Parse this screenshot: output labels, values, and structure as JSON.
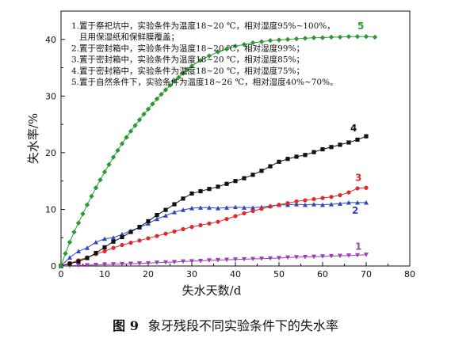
{
  "chart_data": {
    "type": "line",
    "xlabel": "失水天数/d",
    "ylabel": "失水率/%",
    "xlim": [
      0,
      80
    ],
    "ylim": [
      0,
      45
    ],
    "xticks": [
      0,
      10,
      20,
      30,
      40,
      50,
      60,
      70,
      80
    ],
    "yticks": [
      0,
      10,
      20,
      30,
      40
    ],
    "grid": false,
    "notes": [
      "1.置于祭祀坑中，实验条件为温度18~20 ℃，相对湿度95%~100%，",
      "且用保湿纸和保鲜膜覆盖；",
      "2.置于密封箱中，实验条件为温度18~20 ℃，相对湿度99%；",
      "3.置于密封箱中，实验条件为温度18~20 ℃，相对湿度85%；",
      "4.置于密封箱中，实验条件为温度18~20 ℃，相对湿度75%；",
      "5.置于自然条件下，实验条件为温度18~26 ℃，相对湿度40%~70%。"
    ],
    "series": [
      {
        "name": "1",
        "color": "#9b3fb5",
        "marker": "triangle-down",
        "x": [
          0,
          2,
          4,
          6,
          8,
          10,
          12,
          14,
          16,
          18,
          20,
          22,
          24,
          26,
          28,
          30,
          32,
          34,
          36,
          38,
          40,
          42,
          44,
          46,
          48,
          50,
          52,
          54,
          56,
          58,
          60,
          62,
          64,
          66,
          68,
          70
        ],
        "y": [
          0,
          0.05,
          0.1,
          0.15,
          0.2,
          0.25,
          0.3,
          0.35,
          0.4,
          0.45,
          0.5,
          0.6,
          0.65,
          0.7,
          0.8,
          0.85,
          0.9,
          1.0,
          1.05,
          1.1,
          1.15,
          1.2,
          1.25,
          1.3,
          1.35,
          1.4,
          1.5,
          1.55,
          1.6,
          1.65,
          1.7,
          1.75,
          1.8,
          1.85,
          1.9,
          2.0
        ]
      },
      {
        "name": "2",
        "color": "#2e46c0",
        "marker": "triangle-up",
        "x": [
          0,
          2,
          4,
          6,
          8,
          10,
          12,
          14,
          16,
          18,
          20,
          22,
          24,
          26,
          28,
          30,
          32,
          34,
          36,
          38,
          40,
          42,
          44,
          46,
          48,
          50,
          52,
          54,
          56,
          58,
          60,
          62,
          64,
          66,
          68,
          70
        ],
        "y": [
          0,
          1.5,
          2.6,
          3.2,
          4.2,
          4.8,
          5.0,
          5.6,
          6.2,
          6.8,
          7.5,
          8.3,
          8.9,
          9.5,
          9.9,
          10.2,
          10.3,
          10.3,
          10.2,
          10.3,
          10.4,
          10.3,
          10.3,
          10.4,
          10.6,
          10.8,
          10.8,
          10.9,
          10.8,
          10.9,
          10.8,
          10.9,
          11.0,
          11.2,
          11.2,
          11.2
        ]
      },
      {
        "name": "3",
        "color": "#e02a2a",
        "marker": "circle",
        "x": [
          0,
          2,
          4,
          6,
          8,
          10,
          12,
          14,
          16,
          18,
          20,
          22,
          24,
          26,
          28,
          30,
          32,
          34,
          36,
          38,
          40,
          42,
          44,
          46,
          48,
          50,
          52,
          54,
          56,
          58,
          60,
          62,
          64,
          66,
          68,
          70
        ],
        "y": [
          0,
          0.5,
          1.0,
          1.5,
          2.1,
          2.6,
          3.2,
          3.7,
          4.1,
          4.5,
          4.9,
          5.3,
          5.7,
          6.1,
          6.5,
          6.9,
          7.2,
          7.5,
          7.8,
          8.3,
          8.8,
          9.3,
          9.7,
          10.1,
          10.5,
          10.8,
          11.1,
          11.4,
          11.6,
          11.8,
          12.0,
          12.2,
          12.5,
          13.0,
          13.7,
          13.8
        ]
      },
      {
        "name": "4",
        "color": "#111111",
        "marker": "square",
        "x": [
          0,
          2,
          4,
          6,
          8,
          10,
          12,
          14,
          16,
          18,
          20,
          22,
          24,
          26,
          28,
          30,
          32,
          34,
          36,
          38,
          40,
          42,
          44,
          46,
          48,
          50,
          52,
          54,
          56,
          58,
          60,
          62,
          64,
          66,
          68,
          70
        ],
        "y": [
          0,
          0.4,
          0.8,
          1.4,
          2.3,
          3.3,
          4.3,
          5.1,
          6.0,
          6.9,
          7.9,
          9.0,
          9.9,
          10.9,
          11.9,
          12.8,
          13.2,
          13.6,
          14.0,
          14.5,
          15.0,
          15.5,
          16.1,
          16.8,
          17.6,
          18.4,
          18.9,
          19.3,
          19.6,
          20.1,
          20.6,
          21.0,
          21.4,
          21.8,
          22.3,
          22.9
        ]
      },
      {
        "name": "5",
        "color": "#2b9a34",
        "marker": "diamond",
        "x": [
          0,
          1,
          2,
          3,
          4,
          5,
          6,
          7,
          8,
          9,
          10,
          11,
          12,
          13,
          14,
          15,
          16,
          17,
          18,
          19,
          20,
          21,
          22,
          23,
          24,
          25,
          26,
          27,
          28,
          29,
          30,
          32,
          34,
          36,
          38,
          40,
          42,
          44,
          46,
          48,
          50,
          52,
          54,
          56,
          58,
          60,
          62,
          64,
          66,
          68,
          70,
          72
        ],
        "y": [
          0,
          2.2,
          4.2,
          6.0,
          7.6,
          9.2,
          10.8,
          12.3,
          13.8,
          15.2,
          16.6,
          17.9,
          19.2,
          20.4,
          21.6,
          22.7,
          23.8,
          24.8,
          25.8,
          26.8,
          27.7,
          28.6,
          29.5,
          30.3,
          31.1,
          31.9,
          32.6,
          33.3,
          34.0,
          34.7,
          35.3,
          36.3,
          37.1,
          37.8,
          38.3,
          38.8,
          39.1,
          39.4,
          39.6,
          39.8,
          39.9,
          40.0,
          40.1,
          40.2,
          40.3,
          40.3,
          40.4,
          40.4,
          40.5,
          40.5,
          40.5,
          40.4
        ]
      }
    ],
    "series_label_positions": "beside-line-ends"
  },
  "caption": {
    "number": "图 9",
    "text": "象牙残段不同实验条件下的失水率"
  }
}
